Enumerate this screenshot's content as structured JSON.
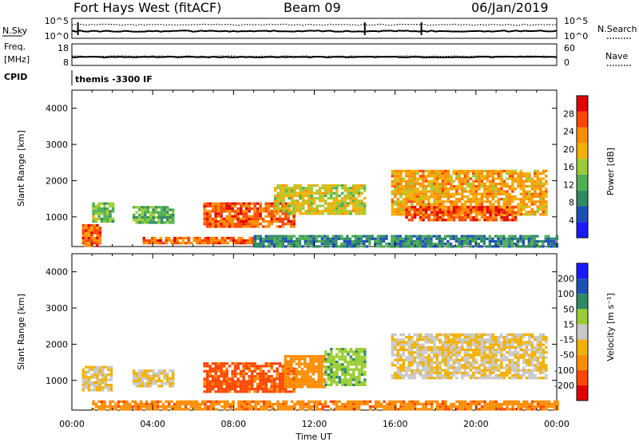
{
  "header": {
    "station": "Fort Hays West (fitACF)",
    "beam": "Beam 09",
    "date": "06/Jan/2019"
  },
  "top_panels": {
    "noise": {
      "left_label": "N.Sky",
      "right_label": "N.Search",
      "left_ticks": [
        "10^5",
        "10^0"
      ],
      "right_ticks": [
        "10^5",
        "10^0"
      ]
    },
    "freq": {
      "left_label_1": "Freq.",
      "left_label_2": "[MHz]",
      "right_label": "Nave",
      "left_ticks": [
        "18",
        "8"
      ],
      "right_ticks": [
        "60",
        "0"
      ]
    },
    "cpid": {
      "label": "CPID",
      "text": "themis -3300 IF"
    }
  },
  "x_axis": {
    "label": "Time UT",
    "ticks": [
      "00:00",
      "04:00",
      "08:00",
      "12:00",
      "16:00",
      "20:00",
      "00:00"
    ]
  },
  "colors": {
    "power": [
      "#1a1aff",
      "#1c4fb8",
      "#2f8a64",
      "#4caf50",
      "#9acd32",
      "#f2b000",
      "#ff8c00",
      "#ff4500",
      "#e00000"
    ],
    "velocity": [
      "#e00000",
      "#ff4500",
      "#ff8c00",
      "#f2b000",
      "#c8c8c8",
      "#9acd32",
      "#2f8a64",
      "#1c4fb8",
      "#1a1aff"
    ]
  },
  "chart_data": [
    {
      "type": "heatmap",
      "panel": "power",
      "xlabel": "Time UT",
      "ylabel": "Slant Range [km]",
      "xlim": [
        0,
        24
      ],
      "ylim": [
        180,
        4500
      ],
      "yticks": [
        "1000",
        "2000",
        "3000",
        "4000"
      ],
      "colorbar": {
        "label": "Power [dB]",
        "range": [
          0,
          32
        ],
        "ticks": [
          "4",
          "8",
          "12",
          "16",
          "20",
          "24",
          "28"
        ]
      },
      "echo_regions": [
        {
          "t_start": 0.5,
          "t_end": 1.4,
          "range_start": 200,
          "range_end": 800,
          "power": 26
        },
        {
          "t_start": 1.0,
          "t_end": 2.0,
          "range_start": 900,
          "range_end": 1400,
          "power": 14
        },
        {
          "t_start": 3.0,
          "t_end": 5.0,
          "range_start": 850,
          "range_end": 1300,
          "power": 12
        },
        {
          "t_start": 6.5,
          "t_end": 11.0,
          "range_start": 700,
          "range_end": 1400,
          "power": 27
        },
        {
          "t_start": 10.0,
          "t_end": 14.5,
          "range_start": 1100,
          "range_end": 1900,
          "power": 18
        },
        {
          "t_start": 3.5,
          "t_end": 9.0,
          "range_start": 250,
          "range_end": 450,
          "power": 26
        },
        {
          "t_start": 15.8,
          "t_end": 23.5,
          "range_start": 1100,
          "range_end": 2300,
          "power": 22
        },
        {
          "t_start": 16.5,
          "t_end": 22.0,
          "range_start": 900,
          "range_end": 1300,
          "power": 28
        },
        {
          "t_start": 9.0,
          "t_end": 24.0,
          "range_start": 180,
          "range_end": 500,
          "power": 8
        }
      ]
    },
    {
      "type": "heatmap",
      "panel": "velocity",
      "xlabel": "Time UT",
      "ylabel": "Slant Range [km]",
      "xlim": [
        0,
        24
      ],
      "ylim": [
        180,
        4500
      ],
      "yticks": [
        "1000",
        "2000",
        "3000",
        "4000"
      ],
      "colorbar": {
        "label": "Velocity [m s⁻¹]",
        "levels": [
          "200",
          "100",
          "50",
          "15",
          "-15",
          "-50",
          "-100",
          "-200"
        ]
      },
      "echo_regions": [
        {
          "t_start": 0.5,
          "t_end": 2.0,
          "range_start": 700,
          "range_end": 1400,
          "velocity": 0
        },
        {
          "t_start": 3.0,
          "t_end": 5.0,
          "range_start": 850,
          "range_end": 1300,
          "velocity": 0
        },
        {
          "t_start": 6.5,
          "t_end": 11.0,
          "range_start": 700,
          "range_end": 1500,
          "velocity": -60
        },
        {
          "t_start": 10.5,
          "t_end": 12.5,
          "range_start": 800,
          "range_end": 1700,
          "velocity": -30
        },
        {
          "t_start": 12.5,
          "t_end": 14.5,
          "range_start": 900,
          "range_end": 1900,
          "velocity": 40
        },
        {
          "t_start": 1.0,
          "t_end": 24.0,
          "range_start": 180,
          "range_end": 450,
          "velocity": -40
        },
        {
          "t_start": 15.8,
          "t_end": 23.5,
          "range_start": 1100,
          "range_end": 2300,
          "velocity": 0
        }
      ]
    }
  ]
}
